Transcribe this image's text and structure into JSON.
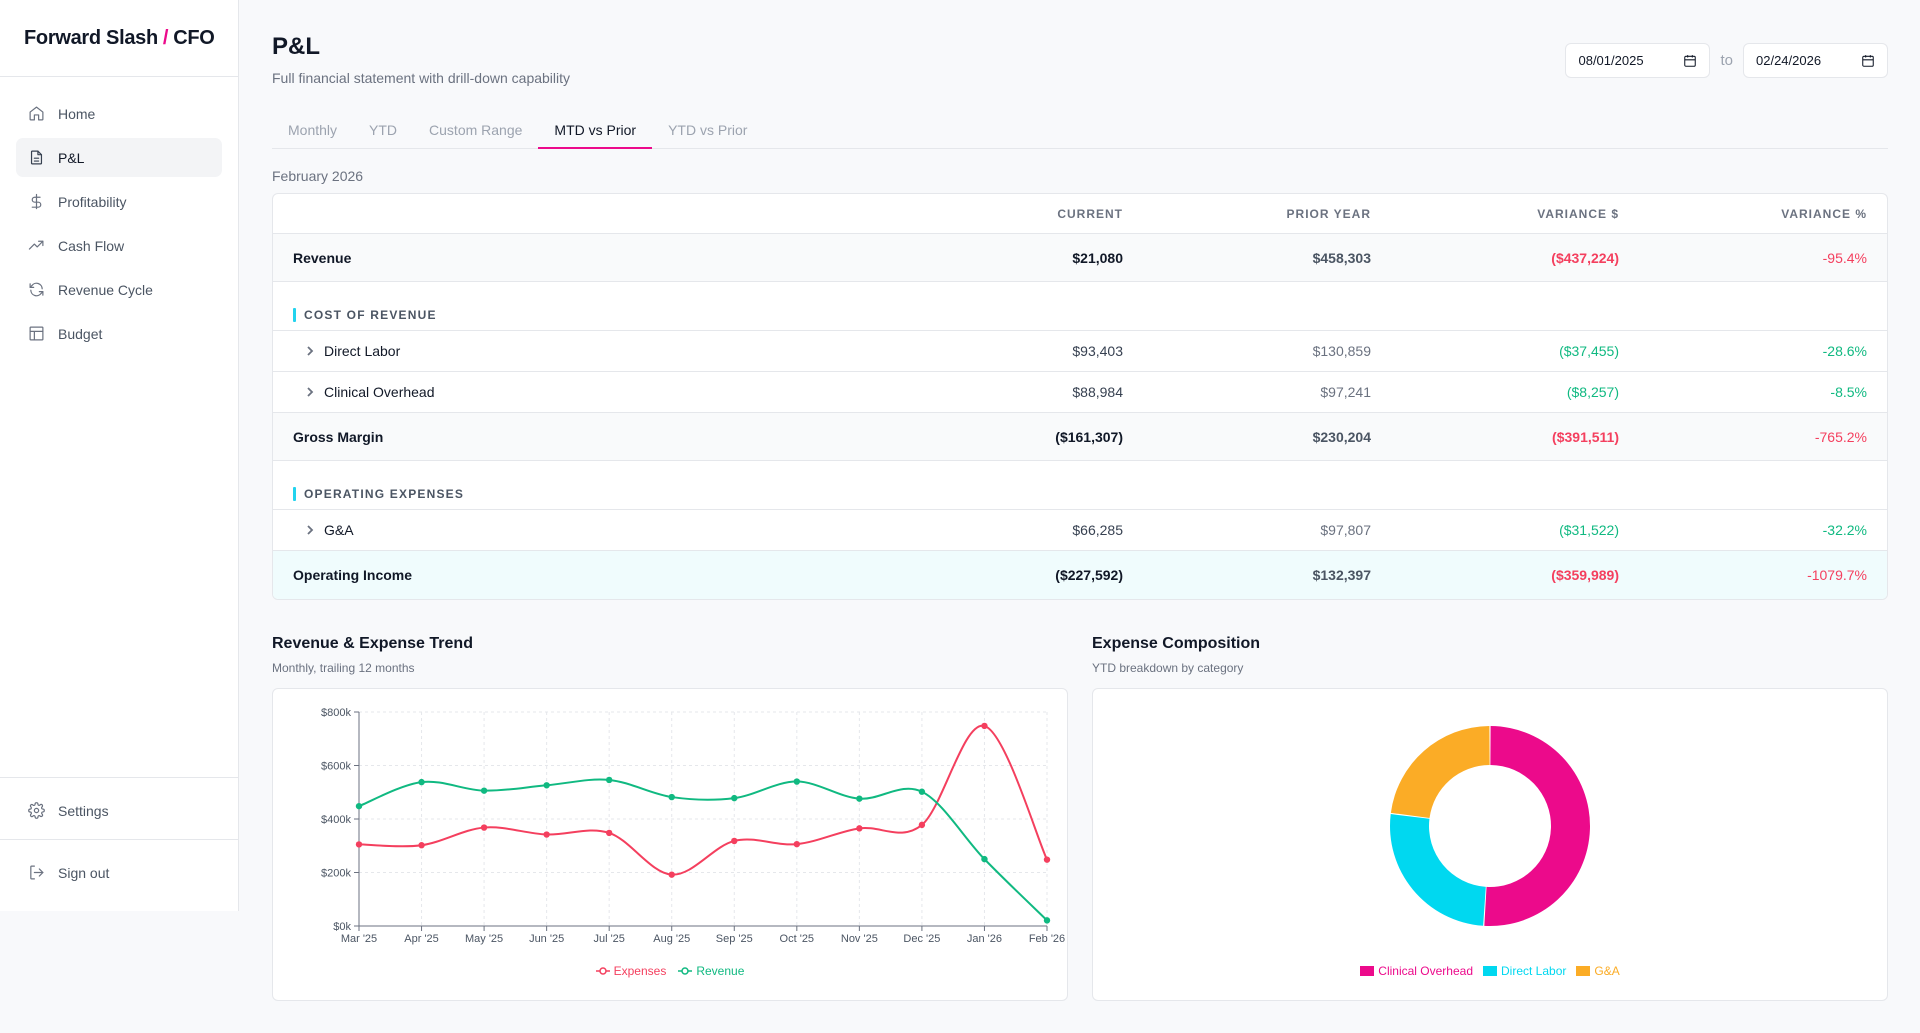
{
  "brand": {
    "left": "Forward Slash",
    "slash": "/",
    "right": "CFO"
  },
  "nav": {
    "items": [
      {
        "label": "Home",
        "icon": "home-icon"
      },
      {
        "label": "P&L",
        "icon": "document-icon"
      },
      {
        "label": "Profitability",
        "icon": "dollar-icon"
      },
      {
        "label": "Cash Flow",
        "icon": "trend-up-icon"
      },
      {
        "label": "Revenue Cycle",
        "icon": "refresh-icon"
      },
      {
        "label": "Budget",
        "icon": "table-icon"
      }
    ],
    "settings": "Settings",
    "signout": "Sign out"
  },
  "page": {
    "title": "P&L",
    "subtitle": "Full financial statement with drill-down capability",
    "date_from": "08/01/2025",
    "date_to": "02/24/2026",
    "date_sep": "to"
  },
  "tabs": [
    "Monthly",
    "YTD",
    "Custom Range",
    "MTD vs Prior",
    "YTD vs Prior"
  ],
  "period_label": "February 2026",
  "table": {
    "headers": [
      "",
      "CURRENT",
      "PRIOR YEAR",
      "VARIANCE $",
      "VARIANCE %"
    ],
    "revenue": {
      "label": "Revenue",
      "current": "$21,080",
      "prior": "$458,303",
      "var": "($437,224)",
      "pct": "-95.4%"
    },
    "cost_section": "COST OF REVENUE",
    "direct_labor": {
      "label": "Direct Labor",
      "current": "$93,403",
      "prior": "$130,859",
      "var": "($37,455)",
      "pct": "-28.6%"
    },
    "clinical": {
      "label": "Clinical Overhead",
      "current": "$88,984",
      "prior": "$97,241",
      "var": "($8,257)",
      "pct": "-8.5%"
    },
    "gross": {
      "label": "Gross Margin",
      "current": "($161,307)",
      "prior": "$230,204",
      "var": "($391,511)",
      "pct": "-765.2%"
    },
    "opex_section": "OPERATING EXPENSES",
    "ga": {
      "label": "G&A",
      "current": "$66,285",
      "prior": "$97,807",
      "var": "($31,522)",
      "pct": "-32.2%"
    },
    "opinc": {
      "label": "Operating Income",
      "current": "($227,592)",
      "prior": "$132,397",
      "var": "($359,989)",
      "pct": "-1079.7%"
    }
  },
  "trend": {
    "title": "Revenue & Expense Trend",
    "subtitle": "Monthly, trailing 12 months"
  },
  "composition": {
    "title": "Expense Composition",
    "subtitle": "YTD breakdown by category"
  },
  "chart_data": [
    {
      "type": "line",
      "x": [
        "Mar '25",
        "Apr '25",
        "May '25",
        "Jun '25",
        "Jul '25",
        "Aug '25",
        "Sep '25",
        "Oct '25",
        "Nov '25",
        "Dec '25",
        "Jan '26",
        "Feb '26"
      ],
      "y_ticks": [
        "$0k",
        "$200k",
        "$400k",
        "$600k",
        "$800k"
      ],
      "ylim": [
        0,
        800
      ],
      "grid": true,
      "legend": "bottom",
      "series": [
        {
          "name": "Expenses",
          "color": "#f43f5e",
          "values": [
            305,
            302,
            368,
            342,
            348,
            192,
            318,
            306,
            365,
            378,
            748,
            248
          ]
        },
        {
          "name": "Revenue",
          "color": "#10b981",
          "values": [
            448,
            538,
            506,
            526,
            546,
            482,
            478,
            540,
            476,
            502,
            250,
            21
          ]
        }
      ]
    },
    {
      "type": "pie",
      "legend": "bottom",
      "slices": [
        {
          "name": "Clinical Overhead",
          "color": "#ec0a8b",
          "value": 51
        },
        {
          "name": "Direct Labor",
          "color": "#00d8f0",
          "value": 26
        },
        {
          "name": "G&A",
          "color": "#fbac26",
          "value": 23
        }
      ]
    }
  ]
}
